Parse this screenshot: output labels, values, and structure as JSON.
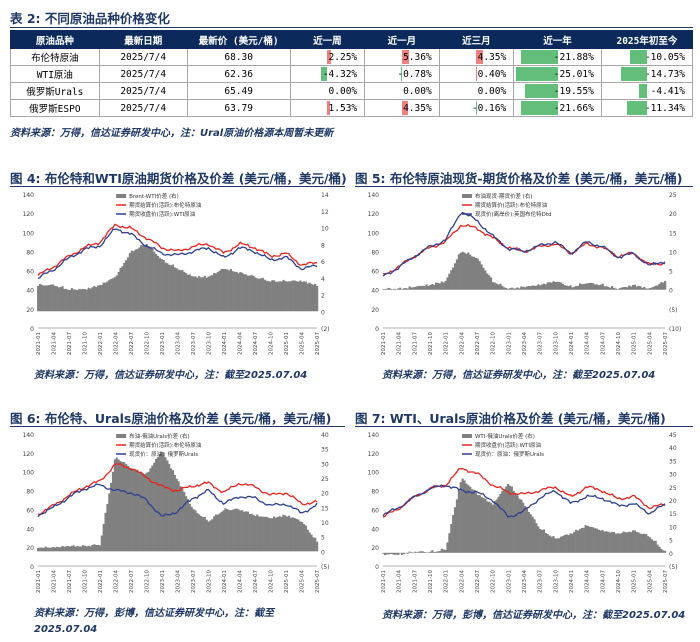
{
  "table2": {
    "title": "表 2: 不同原油品种价格变化",
    "headers": [
      "原油品种",
      "最新日期",
      "最新价 (美元/桶)",
      "近一周",
      "近一月",
      "近三月",
      "近一年",
      "2025年初至今"
    ],
    "rows": [
      {
        "name": "布伦特原油",
        "date": "2025/7/4",
        "price": "68.30",
        "w": "2.25%",
        "m": "5.36%",
        "q": "4.35%",
        "y": "-21.88%",
        "ytd": "-10.05%",
        "w_v": 2.25,
        "m_v": 5.36,
        "q_v": 4.35,
        "y_v": -21.88,
        "ytd_v": -10.05
      },
      {
        "name": "WTI原油",
        "date": "2025/7/4",
        "price": "62.36",
        "w": "-4.32%",
        "m": "-0.78%",
        "q": "0.40%",
        "y": "-25.01%",
        "ytd": "-14.73%",
        "w_v": -4.32,
        "m_v": -0.78,
        "q_v": 0.4,
        "y_v": -25.01,
        "ytd_v": -14.73
      },
      {
        "name": "俄罗斯Urals",
        "date": "2025/7/4",
        "price": "65.49",
        "w": "0.00%",
        "m": "0.00%",
        "q": "0.00%",
        "y": "-19.55%",
        "ytd": "-4.41%",
        "w_v": 0,
        "m_v": 0,
        "q_v": 0,
        "y_v": -19.55,
        "ytd_v": -4.41
      },
      {
        "name": "俄罗斯ESPO",
        "date": "2025/7/4",
        "price": "63.79",
        "w": "1.53%",
        "m": "4.35%",
        "q": "-0.16%",
        "y": "-21.66%",
        "ytd": "-11.34%",
        "w_v": 1.53,
        "m_v": 4.35,
        "q_v": -0.16,
        "y_v": -21.66,
        "ytd_v": -11.34
      }
    ],
    "source": "资料来源：万得，信达证券研发中心，注：Ural原油价格源本周暂未更新"
  },
  "colors": {
    "red": "#e8231e",
    "blue": "#2e3f8f",
    "gray": "#808080",
    "pos_bar": "#f08080",
    "neg_bar": "#63be7b"
  },
  "figures": [
    {
      "id": "fig4",
      "title": "图 4: 布伦特和WTI原油期货价格及价差 (美元/桶，美元/桶)",
      "source": "资料来源：万得，信达证券研发中心，注：截至2025.07.04",
      "legend": [
        "Brent-WTI价差 (右)",
        "期货结算价(活跃):布伦特原油",
        "期货收盘价(活跃):WTI原油"
      ],
      "left_ticks": [
        "0",
        "20",
        "40",
        "60",
        "80",
        "100",
        "120",
        "140"
      ],
      "right_ticks": [
        "(2)",
        "0",
        "2",
        "4",
        "6",
        "8",
        "10",
        "12",
        "14"
      ],
      "x_ticks": [
        "2021-01",
        "2021-04",
        "2021-07",
        "2021-10",
        "2022-01",
        "2022-04",
        "2022-07",
        "2022-10",
        "2023-01",
        "2023-04",
        "2023-07",
        "2023-10",
        "2024-01",
        "2024-04",
        "2024-07",
        "2024-10",
        "2025-01",
        "2025-04",
        "2025-07"
      ],
      "chart_data": {
        "type": "line",
        "x": [
          "2021-01",
          "2021-04",
          "2021-07",
          "2021-10",
          "2022-01",
          "2022-04",
          "2022-07",
          "2022-10",
          "2023-01",
          "2023-04",
          "2023-07",
          "2023-10",
          "2024-01",
          "2024-04",
          "2024-07",
          "2024-10",
          "2025-01",
          "2025-04",
          "2025-07"
        ],
        "series": [
          {
            "name": "期货结算价(活跃):布伦特原油",
            "axis": "left",
            "values": [
              55,
              64,
              75,
              84,
              90,
              108,
              104,
              94,
              84,
              80,
              85,
              88,
              78,
              88,
              84,
              75,
              78,
              66,
              68
            ]
          },
          {
            "name": "期货收盘价(活跃):WTI原油",
            "axis": "left",
            "values": [
              52,
              61,
              73,
              82,
              86,
              104,
              98,
              86,
              78,
              76,
              80,
              84,
              73,
              84,
              80,
              71,
              74,
              62,
              65
            ]
          },
          {
            "name": "Brent-WTI价差 (右)",
            "axis": "right",
            "type": "area",
            "values": [
              3,
              3,
              2.5,
              2.5,
              3,
              4,
              7,
              8,
              6,
              5,
              4,
              4,
              5,
              4.5,
              4,
              3.5,
              3.5,
              3.5,
              3
            ]
          }
        ],
        "ylim_left": [
          0,
          140
        ],
        "ylim_right": [
          -2,
          14
        ]
      }
    },
    {
      "id": "fig5",
      "title": "图 5: 布伦特原油现货-期货价格及价差 (美元/桶，美元/桶)",
      "source": "资料来源：万得，信达证券研发中心，注：截至2025.07.04",
      "legend": [
        "布油现货-期货价差 (右)",
        "期货结算价(活跃):布伦特原油",
        "现货价(离岸价):英国布伦特Dtd"
      ],
      "left_ticks": [
        "0",
        "20",
        "40",
        "60",
        "80",
        "100",
        "120",
        "140"
      ],
      "right_ticks": [
        "(10)",
        "(5)",
        "0",
        "5",
        "10",
        "15",
        "20",
        "25"
      ],
      "x_ticks": [
        "2021-01",
        "2021-04",
        "2021-07",
        "2021-10",
        "2022-01",
        "2022-04",
        "2022-07",
        "2022-10",
        "2023-01",
        "2023-04",
        "2023-07",
        "2023-10",
        "2024-01",
        "2024-04",
        "2024-07",
        "2024-10",
        "2025-01",
        "2025-04",
        "2025-07"
      ],
      "chart_data": {
        "type": "line",
        "x": [
          "2021-01",
          "2021-04",
          "2021-07",
          "2021-10",
          "2022-01",
          "2022-04",
          "2022-07",
          "2022-10",
          "2023-01",
          "2023-04",
          "2023-07",
          "2023-10",
          "2024-01",
          "2024-04",
          "2024-07",
          "2024-10",
          "2025-01",
          "2025-04",
          "2025-07"
        ],
        "series": [
          {
            "name": "期货结算价(活跃):布伦特原油",
            "axis": "left",
            "values": [
              55,
              64,
              75,
              84,
              90,
              108,
              104,
              94,
              84,
              80,
              85,
              88,
              78,
              88,
              84,
              75,
              78,
              66,
              68
            ]
          },
          {
            "name": "现货价(离岸价):英国布伦特Dtd",
            "axis": "left",
            "values": [
              54,
              63,
              75,
              85,
              92,
              122,
              112,
              96,
              83,
              80,
              86,
              90,
              78,
              90,
              85,
              74,
              78,
              65,
              70
            ]
          },
          {
            "name": "布油现货-期货价差 (右)",
            "axis": "right",
            "type": "area",
            "values": [
              0,
              0,
              0.5,
              1,
              2,
              10,
              8,
              2,
              0,
              0.5,
              1,
              2,
              0.5,
              1.5,
              1,
              0,
              1,
              0,
              2
            ]
          }
        ],
        "ylim_left": [
          0,
          140
        ],
        "ylim_right": [
          -10,
          25
        ]
      }
    },
    {
      "id": "fig6",
      "title": "图 6: 布伦特、Urals原油价格及价差 (美元/桶，美元/桶)",
      "source": "资料来源：万得，彭博，信达证券研发中心，注：截至2025.07.04",
      "legend": [
        "布油-俄油Urals价差 (右)",
        "期货结算价(活跃):布伦特原油",
        "现货价：原油：俄罗斯Urals"
      ],
      "left_ticks": [
        "0",
        "20",
        "40",
        "60",
        "80",
        "100",
        "120",
        "140"
      ],
      "right_ticks": [
        "(5)",
        "0",
        "5",
        "10",
        "15",
        "20",
        "25",
        "30",
        "35",
        "40"
      ],
      "x_ticks": [
        "2021-01",
        "2021-04",
        "2021-07",
        "2021-10",
        "2022-01",
        "2022-04",
        "2022-07",
        "2022-10",
        "2023-01",
        "2023-04",
        "2023-07",
        "2023-10",
        "2024-01",
        "2024-04",
        "2024-07",
        "2024-10",
        "2025-01",
        "2025-04",
        "2025-07"
      ],
      "chart_data": {
        "type": "line",
        "x": [
          "2021-01",
          "2021-04",
          "2021-07",
          "2021-10",
          "2022-01",
          "2022-04",
          "2022-07",
          "2022-10",
          "2023-01",
          "2023-04",
          "2023-07",
          "2023-10",
          "2024-01",
          "2024-04",
          "2024-07",
          "2024-10",
          "2025-01",
          "2025-04",
          "2025-07"
        ],
        "series": [
          {
            "name": "期货结算价(活跃):布伦特原油",
            "axis": "left",
            "values": [
              55,
              64,
              75,
              84,
              90,
              108,
              104,
              94,
              84,
              80,
              85,
              88,
              78,
              88,
              84,
              75,
              78,
              66,
              68
            ]
          },
          {
            "name": "现货价：原油：俄罗斯Urals",
            "axis": "left",
            "values": [
              54,
              62,
              73,
              82,
              86,
              80,
              78,
              70,
              52,
              58,
              72,
              80,
              66,
              74,
              72,
              64,
              66,
              56,
              65
            ]
          },
          {
            "name": "布油-俄油Urals价差 (右)",
            "axis": "right",
            "type": "area",
            "values": [
              1,
              1,
              1.5,
              1.5,
              2,
              32,
              28,
              26,
              34,
              24,
              14,
              10,
              14,
              14,
              12,
              11,
              12,
              10,
              3
            ]
          }
        ],
        "ylim_left": [
          0,
          140
        ],
        "ylim_right": [
          -5,
          40
        ]
      }
    },
    {
      "id": "fig7",
      "title": "图 7: WTI、Urals原油价格及价差 (美元/桶，美元/桶)",
      "source": "资料来源：万得，彭博，信达证券研发中心，注：截至2025.07.04",
      "legend": [
        "WTI-俄油Urals价差 (右)",
        "期货收盘价(活跃):WTI原油",
        "现货价：原油：俄罗斯Urals"
      ],
      "left_ticks": [
        "0",
        "20",
        "40",
        "60",
        "80",
        "100",
        "120",
        "140"
      ],
      "right_ticks": [
        "(5)",
        "0",
        "5",
        "10",
        "15",
        "20",
        "25",
        "30",
        "35",
        "40",
        "45"
      ],
      "x_ticks": [
        "2021-01",
        "2021-04",
        "2021-07",
        "2021-10",
        "2022-01",
        "2022-04",
        "2022-07",
        "2022-10",
        "2023-01",
        "2023-04",
        "2023-07",
        "2023-10",
        "2024-01",
        "2024-04",
        "2024-07",
        "2024-10",
        "2025-01",
        "2025-04",
        "2025-07"
      ],
      "chart_data": {
        "type": "line",
        "x": [
          "2021-01",
          "2021-04",
          "2021-07",
          "2021-10",
          "2022-01",
          "2022-04",
          "2022-07",
          "2022-10",
          "2023-01",
          "2023-04",
          "2023-07",
          "2023-10",
          "2024-01",
          "2024-04",
          "2024-07",
          "2024-10",
          "2025-01",
          "2025-04",
          "2025-07"
        ],
        "series": [
          {
            "name": "期货收盘价(活跃):WTI原油",
            "axis": "left",
            "values": [
              52,
              61,
              73,
              82,
              86,
              104,
              98,
              86,
              78,
              76,
              80,
              84,
              73,
              84,
              80,
              71,
              74,
              62,
              65
            ]
          },
          {
            "name": "现货价：原油：俄罗斯Urals",
            "axis": "left",
            "values": [
              54,
              62,
              73,
              82,
              86,
              80,
              78,
              70,
              52,
              58,
              72,
              80,
              66,
              74,
              72,
              64,
              66,
              56,
              65
            ]
          },
          {
            "name": "WTI-俄油Urals价差 (右)",
            "axis": "right",
            "type": "area",
            "values": [
              -1,
              -1,
              0,
              0,
              1,
              28,
              22,
              18,
              26,
              18,
              9,
              5,
              7,
              10,
              8,
              7,
              8,
              6,
              0
            ]
          }
        ],
        "ylim_left": [
          0,
          140
        ],
        "ylim_right": [
          -5,
          45
        ]
      }
    }
  ]
}
